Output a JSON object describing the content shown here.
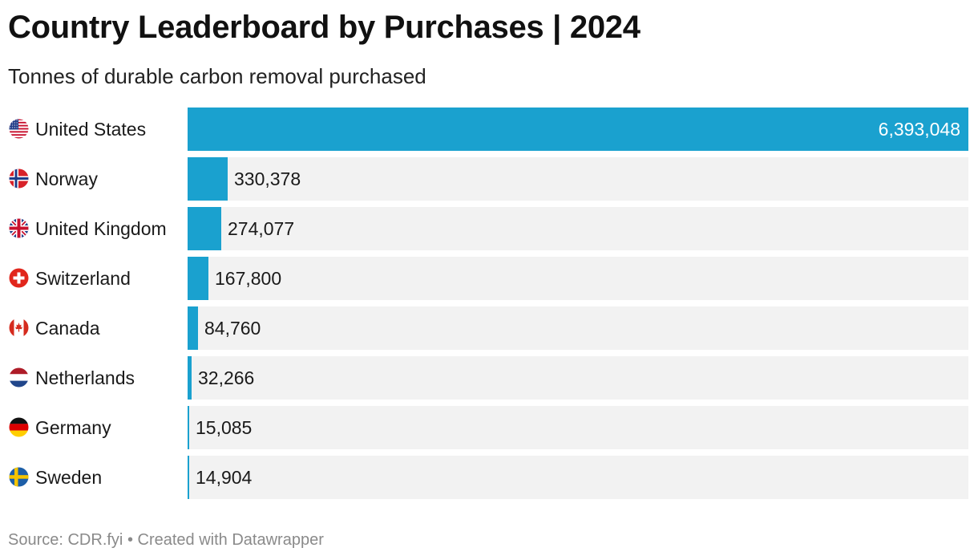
{
  "title": "Country Leaderboard by Purchases | 2024",
  "subtitle": "Tonnes of durable carbon removal purchased",
  "footer": {
    "source": "Source: CDR.fyi",
    "separator": "•",
    "credit": "Created with Datawrapper"
  },
  "colors": {
    "bar": "#1aa1cf",
    "track": "#f2f2f2"
  },
  "chart_data": {
    "type": "bar",
    "orientation": "horizontal",
    "title": "Country Leaderboard by Purchases | 2024",
    "subtitle": "Tonnes of durable carbon removal purchased",
    "xlabel": "",
    "ylabel": "",
    "xlim": [
      0,
      6393048
    ],
    "grid": false,
    "legend": "none",
    "categories": [
      "United States",
      "Norway",
      "United Kingdom",
      "Switzerland",
      "Canada",
      "Netherlands",
      "Germany",
      "Sweden"
    ],
    "values": [
      6393048,
      330378,
      274077,
      167800,
      84760,
      32266,
      15085,
      14904
    ],
    "value_labels": [
      "6,393,048",
      "330,378",
      "274,077",
      "167,800",
      "84,760",
      "32,266",
      "15,085",
      "14,904"
    ],
    "flags": [
      "us-flag-icon",
      "norway-flag-icon",
      "uk-flag-icon",
      "switzerland-flag-icon",
      "canada-flag-icon",
      "netherlands-flag-icon",
      "germany-flag-icon",
      "sweden-flag-icon"
    ]
  }
}
